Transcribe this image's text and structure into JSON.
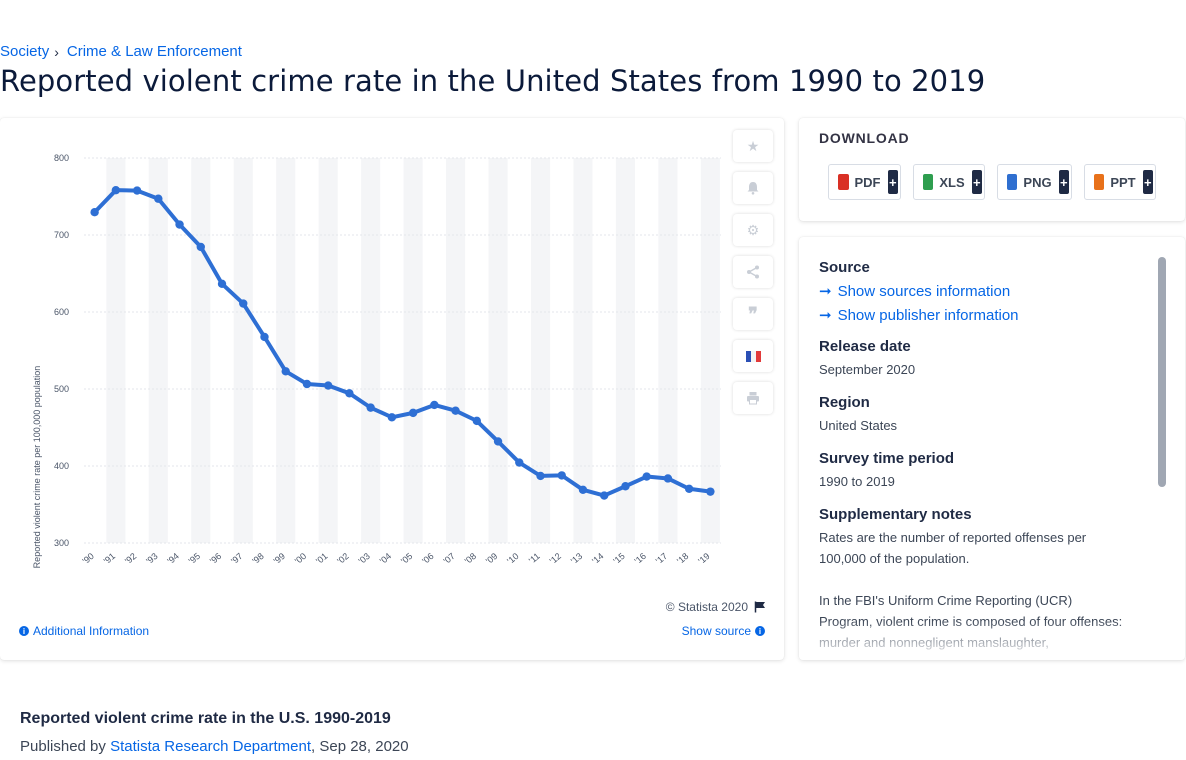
{
  "breadcrumb": {
    "items": [
      "Society",
      "Crime & Law Enforcement"
    ]
  },
  "page": {
    "title": "Reported violent crime rate in the United States from 1990 to 2019"
  },
  "chart": {
    "copyright": "© Statista 2020",
    "additional_info": "Additional Information",
    "show_source": "Show source"
  },
  "chart_data": {
    "type": "line",
    "title": "",
    "xlabel": "",
    "ylabel": "Reported violent crime rate per 100,000 population",
    "categories": [
      "'90",
      "'91",
      "'92",
      "'93",
      "'94",
      "'95",
      "'96",
      "'97",
      "'98",
      "'99",
      "'00",
      "'01",
      "'02",
      "'03",
      "'04",
      "'05",
      "'06",
      "'07",
      "'08",
      "'09",
      "'10",
      "'11",
      "'12",
      "'13",
      "'14",
      "'15",
      "'16",
      "'17",
      "'18",
      "'19"
    ],
    "values": [
      729.6,
      758.2,
      757.7,
      747.1,
      713.6,
      684.5,
      636.6,
      611.0,
      567.6,
      523.0,
      506.5,
      504.5,
      494.4,
      475.8,
      463.2,
      469.0,
      479.3,
      471.8,
      458.6,
      431.9,
      404.5,
      387.1,
      387.8,
      369.1,
      361.6,
      373.7,
      386.3,
      383.8,
      370.4,
      366.7
    ],
    "yticks": [
      300,
      400,
      500,
      600,
      700,
      800
    ],
    "ylim": [
      300,
      800
    ],
    "grid": true,
    "line_color": "#2e6fd4"
  },
  "toolbar": {
    "buttons": [
      "star-icon",
      "bell-icon",
      "gear-icon",
      "share-icon",
      "quote-icon",
      "french-flag-icon",
      "print-icon"
    ]
  },
  "download": {
    "title": "DOWNLOAD",
    "buttons": [
      {
        "label": "PDF",
        "plus": "+",
        "color": "#d93025"
      },
      {
        "label": "XLS",
        "plus": "+",
        "color": "#2e9e4f"
      },
      {
        "label": "PNG",
        "plus": "+",
        "color": "#2f6fd0"
      },
      {
        "label": "PPT",
        "plus": "+",
        "color": "#e8711a"
      }
    ]
  },
  "info": {
    "source_label": "Source",
    "show_sources": "Show sources information",
    "show_publisher": "Show publisher information",
    "release_label": "Release date",
    "release_value": "September 2020",
    "region_label": "Region",
    "region_value": "United States",
    "survey_label": "Survey time period",
    "survey_value": "1990 to 2019",
    "notes_label": "Supplementary notes",
    "notes_value_1": "Rates are the number of reported offenses per 100,000 of the population.",
    "notes_value_2": "In the FBI's Uniform Crime Reporting (UCR) Program, violent crime is composed of four offenses: murder and nonnegligent manslaughter,"
  },
  "publication": {
    "title": "Reported violent crime rate in the U.S. 1990-2019",
    "published_by": "Published by",
    "author": "Statista Research Department",
    "date": ", Sep 28, 2020"
  }
}
